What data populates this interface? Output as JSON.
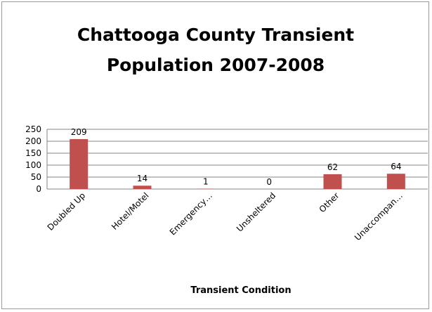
{
  "chart_data": {
    "type": "bar",
    "title_lines": [
      "Chattooga County Transient",
      "Population 2007-2008"
    ],
    "xlabel": "Transient Condition",
    "ylabel": "",
    "categories": [
      "Doubled Up",
      "Hotel/Motel",
      "Emergency…",
      "Unsheltered",
      "Other",
      "Unaccompan…"
    ],
    "values": [
      209,
      14,
      1,
      0,
      62,
      64
    ],
    "ylim": [
      0,
      250
    ],
    "yticks": [
      "0",
      "50",
      "100",
      "150",
      "200",
      "250"
    ],
    "grid": true,
    "legend": "none",
    "colors": {
      "bar": "#c0504d",
      "grid": "#868686",
      "axis": "#868686"
    }
  }
}
